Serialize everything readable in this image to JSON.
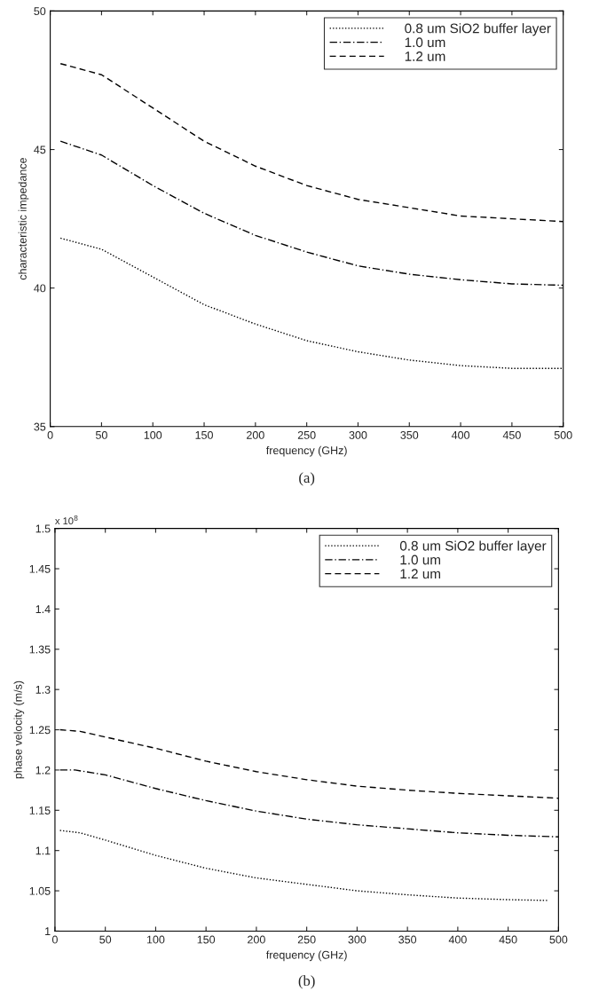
{
  "chart_data": [
    {
      "type": "line",
      "xlabel": "frequency (GHz)",
      "ylabel": "characteristic impedance",
      "annotations": [
        "(a)"
      ],
      "x": [
        10,
        50,
        100,
        150,
        200,
        250,
        300,
        350,
        400,
        450,
        500
      ],
      "xlim": [
        0,
        500
      ],
      "xticks": [
        0,
        50,
        100,
        150,
        200,
        250,
        300,
        350,
        400,
        450,
        500
      ],
      "ylim": [
        35,
        50
      ],
      "yticks": [
        35,
        40,
        45,
        50
      ],
      "legend": "top right",
      "grid": false,
      "series": [
        {
          "name": "0.8 um SiO2 buffer layer",
          "color": "#000000",
          "line_style": "dotted",
          "values": [
            41.8,
            41.4,
            40.4,
            39.4,
            38.7,
            38.1,
            37.7,
            37.4,
            37.2,
            37.1,
            37.1
          ]
        },
        {
          "name": "1.0 um",
          "color": "#000000",
          "line_style": "dashdot",
          "values": [
            45.3,
            44.8,
            43.7,
            42.7,
            41.9,
            41.3,
            40.8,
            40.5,
            40.3,
            40.15,
            40.1
          ]
        },
        {
          "name": "1.2 um",
          "color": "#000000",
          "line_style": "dashed",
          "values": [
            48.1,
            47.7,
            46.5,
            45.3,
            44.4,
            43.7,
            43.2,
            42.9,
            42.6,
            42.5,
            42.4
          ]
        }
      ]
    },
    {
      "type": "line",
      "xlabel": "frequency (GHz)",
      "ylabel": "phase velocity (m/s)",
      "annotations": [
        "x 10$^{8}$",
        "(b)"
      ],
      "xlim": [
        0,
        500
      ],
      "xticks": [
        0,
        50,
        100,
        150,
        200,
        250,
        300,
        350,
        400,
        450,
        500
      ],
      "ylim": [
        1,
        1.5
      ],
      "yticks": [
        1,
        1.05,
        1.1,
        1.15,
        1.2,
        1.25,
        1.3,
        1.35,
        1.4,
        1.45,
        1.5
      ],
      "legend": "top right",
      "grid": false,
      "series": [
        {
          "name": "0.8 um SiO2 buffer layer",
          "color": "#000000",
          "line_style": "dotted",
          "x": [
            5,
            25,
            50,
            100,
            150,
            200,
            250,
            300,
            350,
            400,
            450,
            490
          ],
          "values": [
            1.125,
            1.122,
            1.113,
            1.094,
            1.078,
            1.066,
            1.058,
            1.05,
            1.045,
            1.041,
            1.039,
            1.038
          ]
        },
        {
          "name": "1.0 um",
          "color": "#000000",
          "line_style": "dashdot",
          "x": [
            5,
            20,
            50,
            100,
            150,
            200,
            250,
            300,
            350,
            400,
            450,
            500
          ],
          "values": [
            1.2,
            1.2,
            1.194,
            1.177,
            1.162,
            1.149,
            1.139,
            1.132,
            1.127,
            1.122,
            1.119,
            1.117
          ]
        },
        {
          "name": "1.2 um",
          "color": "#000000",
          "line_style": "dashed",
          "x": [
            5,
            25,
            50,
            100,
            150,
            200,
            250,
            300,
            350,
            400,
            450,
            500
          ],
          "values": [
            1.25,
            1.248,
            1.241,
            1.227,
            1.211,
            1.198,
            1.188,
            1.18,
            1.175,
            1.171,
            1.168,
            1.165
          ]
        }
      ]
    }
  ]
}
